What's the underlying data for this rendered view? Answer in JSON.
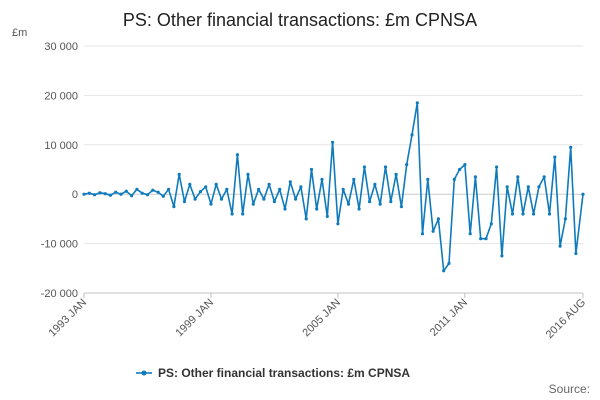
{
  "chart_data": {
    "type": "line",
    "title": "PS: Other financial transactions: £m CPNSA",
    "unit_label": "£m",
    "x_tick_labels": [
      "1993 JAN",
      "1999 JAN",
      "2005 JAN",
      "2011 JAN",
      "2016 AUG"
    ],
    "x_range": [
      "1993-01",
      "2016-08"
    ],
    "y_tick_labels": [
      "30 000",
      "20 000",
      "10 000",
      "0",
      "-10 000",
      "-20 000"
    ],
    "ylim": [
      -20000,
      30000
    ],
    "y_ticks": [
      30000,
      20000,
      10000,
      0,
      -10000,
      -20000
    ],
    "grid": true,
    "legend": "bottom",
    "series": [
      {
        "name": "PS: Other financial transactions: £m CPNSA",
        "color": "#0f7bbd",
        "x": [
          "1993-01",
          "1993-04",
          "1993-07",
          "1993-10",
          "1994-01",
          "1994-04",
          "1994-07",
          "1994-10",
          "1995-01",
          "1995-04",
          "1995-07",
          "1995-10",
          "1996-01",
          "1996-04",
          "1996-07",
          "1996-10",
          "1997-01",
          "1997-04",
          "1997-07",
          "1997-10",
          "1998-01",
          "1998-04",
          "1998-07",
          "1998-10",
          "1999-01",
          "1999-04",
          "1999-07",
          "1999-10",
          "2000-01",
          "2000-04",
          "2000-07",
          "2000-10",
          "2001-01",
          "2001-04",
          "2001-07",
          "2001-10",
          "2002-01",
          "2002-04",
          "2002-07",
          "2002-10",
          "2003-01",
          "2003-04",
          "2003-07",
          "2003-10",
          "2004-01",
          "2004-04",
          "2004-07",
          "2004-10",
          "2005-01",
          "2005-04",
          "2005-07",
          "2005-10",
          "2006-01",
          "2006-04",
          "2006-07",
          "2006-10",
          "2007-01",
          "2007-04",
          "2007-07",
          "2007-10",
          "2008-01",
          "2008-04",
          "2008-07",
          "2008-10",
          "2009-01",
          "2009-04",
          "2009-07",
          "2009-10",
          "2010-01",
          "2010-04",
          "2010-07",
          "2010-10",
          "2011-01",
          "2011-04",
          "2011-07",
          "2011-10",
          "2012-01",
          "2012-04",
          "2012-07",
          "2012-10",
          "2013-01",
          "2013-04",
          "2013-07",
          "2013-10",
          "2014-01",
          "2014-04",
          "2014-07",
          "2014-10",
          "2015-01",
          "2015-04",
          "2015-07",
          "2015-10",
          "2016-01",
          "2016-04",
          "2016-08"
        ],
        "values": [
          0,
          200,
          -100,
          300,
          100,
          -200,
          400,
          0,
          600,
          -300,
          1000,
          200,
          -100,
          800,
          400,
          -400,
          1000,
          -2500,
          4000,
          -1500,
          2000,
          -1000,
          500,
          1500,
          -2000,
          2000,
          -1000,
          1000,
          -4000,
          8000,
          -4000,
          4000,
          -2000,
          1000,
          -1000,
          2000,
          -1500,
          1000,
          -3000,
          2500,
          -1000,
          1500,
          -5000,
          5000,
          -3000,
          3000,
          -4500,
          10500,
          -6000,
          1000,
          -2000,
          3000,
          -3000,
          5500,
          -1500,
          2000,
          -2000,
          5500,
          -1500,
          4000,
          -2500,
          6000,
          12000,
          18500,
          -8000,
          3000,
          -7500,
          -5000,
          -15500,
          -14000,
          3000,
          5000,
          6000,
          -8000,
          3500,
          -9000,
          -9000,
          -6000,
          5500,
          -12500,
          1500,
          -4000,
          3500,
          -4000,
          1500,
          -4000,
          1500,
          3500,
          -4000,
          7500,
          -10500,
          -5000,
          9500,
          -12000,
          0
        ]
      }
    ]
  },
  "source_label": "Source:"
}
